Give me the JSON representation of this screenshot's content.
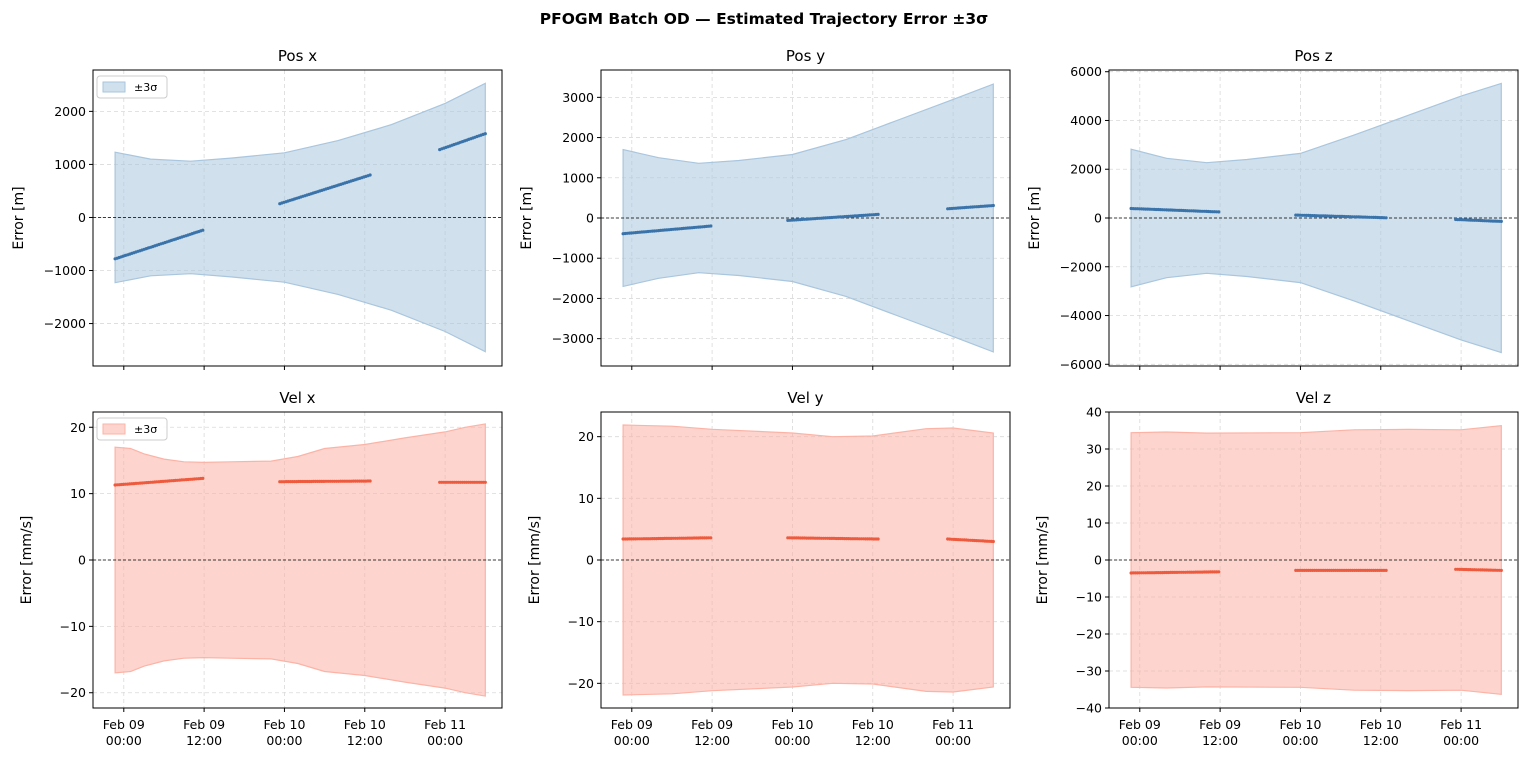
{
  "figure": {
    "suptitle": "PFOGM Batch OD — Estimated Trajectory Error  ±3σ",
    "legend_label": "±3σ",
    "colors": {
      "position_band": "#a9c6de",
      "position_points": "#3a73aa",
      "velocity_band": "#fcb3a6",
      "velocity_points": "#ee5a3e",
      "grid": "#d9d9d9"
    }
  },
  "chart_data": [
    {
      "type": "area",
      "title": "Pos x",
      "xlabel": "",
      "ylabel": "Error [m]",
      "group": "position",
      "legend": true,
      "x_ticks": [
        "Feb 09\n00:00",
        "Feb 09\n12:00",
        "Feb 10\n00:00",
        "Feb 10\n12:00",
        "Feb 11\n00:00"
      ],
      "x_tick_hours": [
        0,
        12,
        24,
        36,
        48
      ],
      "xlim_hours": [
        -4.6,
        56.5
      ],
      "ylim": [
        -2800,
        2780
      ],
      "yticks": [
        -2000,
        -1000,
        0,
        1000,
        2000
      ],
      "grid": true,
      "zero_line": true,
      "band_upper": [
        [
          -1.3,
          1230
        ],
        [
          4,
          1100
        ],
        [
          10,
          1060
        ],
        [
          16,
          1120
        ],
        [
          24,
          1220
        ],
        [
          32,
          1450
        ],
        [
          40,
          1750
        ],
        [
          48,
          2150
        ],
        [
          54,
          2530
        ]
      ],
      "band_lower": [
        [
          -1.3,
          -1230
        ],
        [
          4,
          -1100
        ],
        [
          10,
          -1060
        ],
        [
          16,
          -1120
        ],
        [
          24,
          -1220
        ],
        [
          32,
          -1450
        ],
        [
          40,
          -1750
        ],
        [
          48,
          -2150
        ],
        [
          54,
          -2530
        ]
      ],
      "arcs": [
        {
          "t0": -1.3,
          "t1": 11.8,
          "y0": -780,
          "y1": -240
        },
        {
          "t0": 23.3,
          "t1": 36.8,
          "y0": 260,
          "y1": 800
        },
        {
          "t0": 47.2,
          "t1": 54,
          "y0": 1280,
          "y1": 1580
        }
      ]
    },
    {
      "type": "area",
      "title": "Pos y",
      "xlabel": "",
      "ylabel": "Error [m]",
      "group": "position",
      "legend": false,
      "x_ticks": [
        "Feb 09\n00:00",
        "Feb 09\n12:00",
        "Feb 10\n00:00",
        "Feb 10\n12:00",
        "Feb 11\n00:00"
      ],
      "x_tick_hours": [
        0,
        12,
        24,
        36,
        48
      ],
      "xlim_hours": [
        -4.6,
        56.5
      ],
      "ylim": [
        -3680,
        3680
      ],
      "yticks": [
        -3000,
        -2000,
        -1000,
        0,
        1000,
        2000,
        3000
      ],
      "grid": true,
      "zero_line": true,
      "band_upper": [
        [
          -1.3,
          1700
        ],
        [
          4,
          1500
        ],
        [
          10,
          1360
        ],
        [
          16,
          1430
        ],
        [
          24,
          1580
        ],
        [
          32,
          1950
        ],
        [
          40,
          2450
        ],
        [
          48,
          2950
        ],
        [
          54,
          3330
        ]
      ],
      "band_lower": [
        [
          -1.3,
          -1700
        ],
        [
          4,
          -1500
        ],
        [
          10,
          -1360
        ],
        [
          16,
          -1430
        ],
        [
          24,
          -1580
        ],
        [
          32,
          -1950
        ],
        [
          40,
          -2450
        ],
        [
          48,
          -2950
        ],
        [
          54,
          -3330
        ]
      ],
      "arcs": [
        {
          "t0": -1.3,
          "t1": 11.8,
          "y0": -390,
          "y1": -200
        },
        {
          "t0": 23.3,
          "t1": 36.8,
          "y0": -60,
          "y1": 90
        },
        {
          "t0": 47.2,
          "t1": 54,
          "y0": 230,
          "y1": 310
        }
      ]
    },
    {
      "type": "area",
      "title": "Pos z",
      "xlabel": "",
      "ylabel": "Error [m]",
      "group": "position",
      "legend": false,
      "x_ticks": [
        "Feb 09\n00:00",
        "Feb 09\n12:00",
        "Feb 10\n00:00",
        "Feb 10\n12:00",
        "Feb 11\n00:00"
      ],
      "x_tick_hours": [
        0,
        12,
        24,
        36,
        48
      ],
      "xlim_hours": [
        -4.6,
        56.5
      ],
      "ylim": [
        -6070,
        6070
      ],
      "yticks": [
        -6000,
        -4000,
        -2000,
        0,
        2000,
        4000,
        6000
      ],
      "grid": true,
      "zero_line": true,
      "band_upper": [
        [
          -1.3,
          2820
        ],
        [
          4,
          2450
        ],
        [
          10,
          2270
        ],
        [
          16,
          2400
        ],
        [
          24,
          2650
        ],
        [
          32,
          3400
        ],
        [
          40,
          4200
        ],
        [
          48,
          5000
        ],
        [
          54,
          5520
        ]
      ],
      "band_lower": [
        [
          -1.3,
          -2820
        ],
        [
          4,
          -2450
        ],
        [
          10,
          -2270
        ],
        [
          16,
          -2400
        ],
        [
          24,
          -2650
        ],
        [
          32,
          -3400
        ],
        [
          40,
          -4200
        ],
        [
          48,
          -5000
        ],
        [
          54,
          -5520
        ]
      ],
      "arcs": [
        {
          "t0": -1.3,
          "t1": 11.8,
          "y0": 390,
          "y1": 250
        },
        {
          "t0": 23.3,
          "t1": 36.8,
          "y0": 120,
          "y1": 10
        },
        {
          "t0": 47.2,
          "t1": 54,
          "y0": -60,
          "y1": -140
        }
      ]
    },
    {
      "type": "area",
      "title": "Vel x",
      "xlabel": "",
      "ylabel": "Error [mm/s]",
      "group": "velocity",
      "legend": true,
      "x_ticks": [
        "Feb 09\n00:00",
        "Feb 09\n12:00",
        "Feb 10\n00:00",
        "Feb 10\n12:00",
        "Feb 11\n00:00"
      ],
      "x_tick_hours": [
        0,
        12,
        24,
        36,
        48
      ],
      "xlim_hours": [
        -4.6,
        56.5
      ],
      "ylim": [
        -22.3,
        22.3
      ],
      "yticks": [
        -20,
        -10,
        0,
        10,
        20
      ],
      "grid": true,
      "zero_line": true,
      "band_upper": [
        [
          -1.3,
          17
        ],
        [
          1,
          16.8
        ],
        [
          3,
          16
        ],
        [
          6,
          15.2
        ],
        [
          9,
          14.8
        ],
        [
          12,
          14.7
        ],
        [
          16,
          14.8
        ],
        [
          22,
          14.9
        ],
        [
          26,
          15.6
        ],
        [
          30,
          16.8
        ],
        [
          36,
          17.4
        ],
        [
          42,
          18.4
        ],
        [
          48,
          19.3
        ],
        [
          51,
          20
        ],
        [
          54,
          20.5
        ]
      ],
      "band_lower": [
        [
          -1.3,
          -17
        ],
        [
          1,
          -16.8
        ],
        [
          3,
          -16
        ],
        [
          6,
          -15.2
        ],
        [
          9,
          -14.8
        ],
        [
          12,
          -14.7
        ],
        [
          16,
          -14.8
        ],
        [
          22,
          -14.9
        ],
        [
          26,
          -15.6
        ],
        [
          30,
          -16.8
        ],
        [
          36,
          -17.4
        ],
        [
          42,
          -18.4
        ],
        [
          48,
          -19.3
        ],
        [
          51,
          -20
        ],
        [
          54,
          -20.5
        ]
      ],
      "arcs": [
        {
          "t0": -1.3,
          "t1": 11.8,
          "y0": 11.3,
          "y1": 12.3
        },
        {
          "t0": 23.3,
          "t1": 36.8,
          "y0": 11.8,
          "y1": 11.9
        },
        {
          "t0": 47.2,
          "t1": 54,
          "y0": 11.7,
          "y1": 11.7
        }
      ]
    },
    {
      "type": "area",
      "title": "Vel y",
      "xlabel": "",
      "ylabel": "Error [mm/s]",
      "group": "velocity",
      "legend": false,
      "x_ticks": [
        "Feb 09\n00:00",
        "Feb 09\n12:00",
        "Feb 10\n00:00",
        "Feb 10\n12:00",
        "Feb 11\n00:00"
      ],
      "x_tick_hours": [
        0,
        12,
        24,
        36,
        48
      ],
      "xlim_hours": [
        -4.6,
        56.5
      ],
      "ylim": [
        -24,
        24
      ],
      "yticks": [
        -20,
        -10,
        0,
        10,
        20
      ],
      "grid": true,
      "zero_line": true,
      "band_upper": [
        [
          -1.3,
          21.9
        ],
        [
          6,
          21.7
        ],
        [
          12,
          21.2
        ],
        [
          24,
          20.6
        ],
        [
          30,
          20.0
        ],
        [
          36,
          20.1
        ],
        [
          44,
          21.3
        ],
        [
          48,
          21.4
        ],
        [
          54,
          20.6
        ]
      ],
      "band_lower": [
        [
          -1.3,
          -21.9
        ],
        [
          6,
          -21.7
        ],
        [
          12,
          -21.2
        ],
        [
          24,
          -20.6
        ],
        [
          30,
          -20.0
        ],
        [
          36,
          -20.1
        ],
        [
          44,
          -21.3
        ],
        [
          48,
          -21.4
        ],
        [
          54,
          -20.6
        ]
      ],
      "arcs": [
        {
          "t0": -1.3,
          "t1": 11.8,
          "y0": 3.4,
          "y1": 3.6
        },
        {
          "t0": 23.3,
          "t1": 36.8,
          "y0": 3.6,
          "y1": 3.4
        },
        {
          "t0": 47.2,
          "t1": 54,
          "y0": 3.4,
          "y1": 3.0
        }
      ]
    },
    {
      "type": "area",
      "title": "Vel z",
      "xlabel": "",
      "ylabel": "Error [mm/s]",
      "group": "velocity",
      "legend": false,
      "x_ticks": [
        "Feb 09\n00:00",
        "Feb 09\n12:00",
        "Feb 10\n00:00",
        "Feb 10\n12:00",
        "Feb 11\n00:00"
      ],
      "x_tick_hours": [
        0,
        12,
        24,
        36,
        48
      ],
      "xlim_hours": [
        -4.6,
        56.5
      ],
      "ylim": [
        -40,
        40
      ],
      "yticks": [
        -40,
        -30,
        -20,
        -10,
        0,
        10,
        20,
        30,
        40
      ],
      "grid": true,
      "zero_line": true,
      "band_upper": [
        [
          -1.3,
          34.4
        ],
        [
          4,
          34.6
        ],
        [
          10,
          34.3
        ],
        [
          24,
          34.4
        ],
        [
          32,
          35.2
        ],
        [
          40,
          35.3
        ],
        [
          48,
          35.2
        ],
        [
          54,
          36.3
        ]
      ],
      "band_lower": [
        [
          -1.3,
          -34.4
        ],
        [
          4,
          -34.6
        ],
        [
          10,
          -34.3
        ],
        [
          24,
          -34.4
        ],
        [
          32,
          -35.2
        ],
        [
          40,
          -35.3
        ],
        [
          48,
          -35.2
        ],
        [
          54,
          -36.3
        ]
      ],
      "arcs": [
        {
          "t0": -1.3,
          "t1": 11.8,
          "y0": -3.5,
          "y1": -3.2
        },
        {
          "t0": 23.3,
          "t1": 36.8,
          "y0": -2.8,
          "y1": -2.8
        },
        {
          "t0": 47.2,
          "t1": 54,
          "y0": -2.5,
          "y1": -2.8
        }
      ]
    }
  ]
}
